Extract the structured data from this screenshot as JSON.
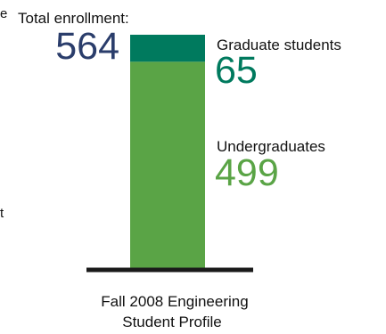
{
  "chart_data": {
    "type": "bar",
    "stacked": true,
    "categories": [
      "Fall 2008"
    ],
    "series": [
      {
        "name": "Undergraduates",
        "values": [
          499
        ],
        "color": "#5aa446"
      },
      {
        "name": "Graduate students",
        "values": [
          65
        ],
        "color": "#007a5e"
      }
    ],
    "total": 564,
    "total_label": "Total enrollment:",
    "caption_line1": "Fall 2008 Engineering",
    "caption_line2": "Student Profile",
    "ylim": [
      0,
      564
    ],
    "colors": {
      "total_value": "#2a3d6b",
      "graduate_value": "#007a5e",
      "undergrad_value": "#5aa446",
      "baseline": "#1a1a1a",
      "label_text": "#111111"
    }
  }
}
